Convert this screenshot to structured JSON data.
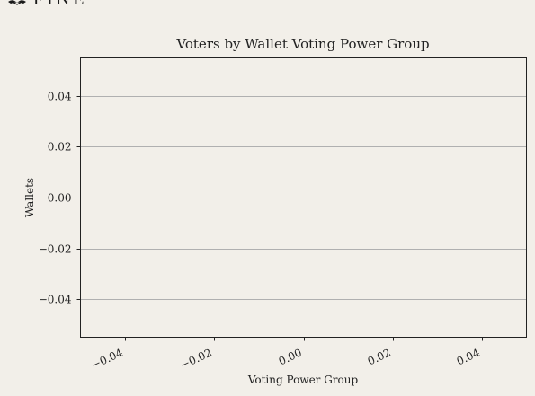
{
  "logo": {
    "text": "FINE",
    "color": "#1a1a1a"
  },
  "colors": {
    "background": "#f2efe9",
    "grid": "#b0b0b0",
    "axis": "#222222",
    "text": "#222222"
  },
  "chart_data": {
    "type": "bar",
    "title": "Voters by Wallet Voting Power Group",
    "xlabel": "Voting Power Group",
    "ylabel": "Wallets",
    "categories": [],
    "values": [],
    "xlim": [
      -0.05,
      0.05
    ],
    "ylim": [
      -0.055,
      0.055
    ],
    "xticks": [
      -0.04,
      -0.02,
      0.0,
      0.02,
      0.04
    ],
    "yticks": [
      -0.04,
      -0.02,
      0.0,
      0.02,
      0.04
    ],
    "xtick_labels": [
      "−0.04",
      "−0.02",
      "0.00",
      "0.02",
      "0.04"
    ],
    "ytick_labels": [
      "−0.04",
      "−0.02",
      "0.00",
      "0.02",
      "0.04"
    ],
    "grid": true,
    "grid_axis": "y",
    "legend": "none"
  }
}
